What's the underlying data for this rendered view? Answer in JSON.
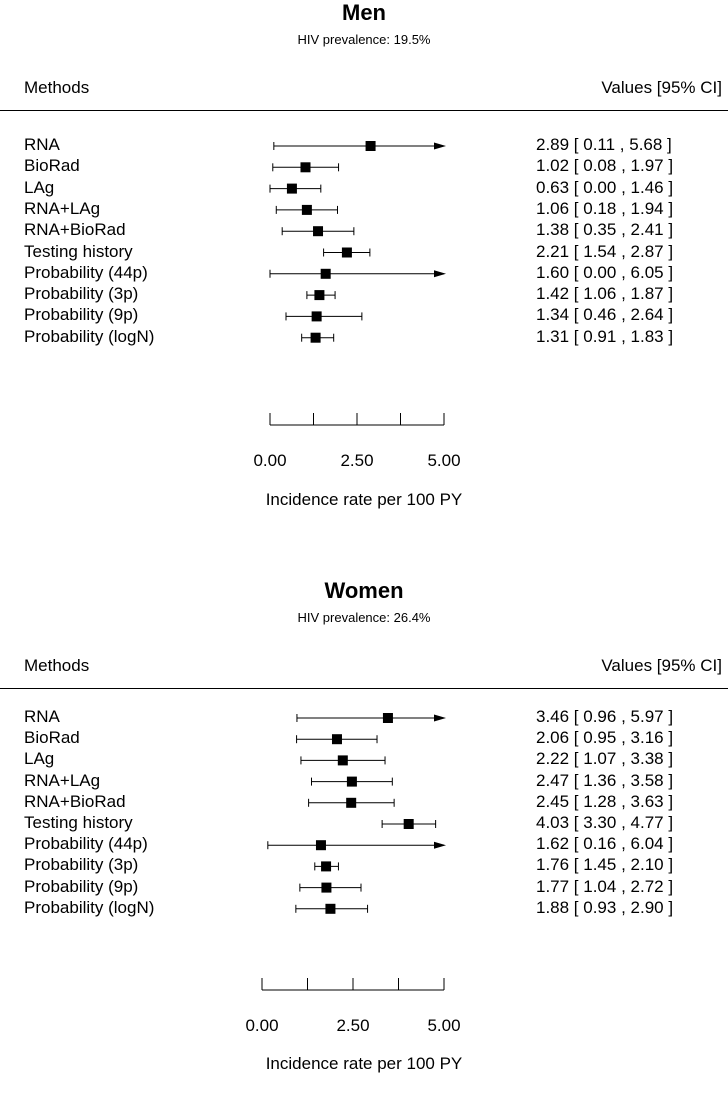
{
  "panels": [
    {
      "title": "Men",
      "subtitle": "HIV prevalence: 19.5%",
      "header_methods": "Methods",
      "header_values": "Values [95% CI]",
      "axis_title": "Incidence rate per 100 PY",
      "tick_labels": [
        "0.00",
        "2.50",
        "5.00"
      ]
    },
    {
      "title": "Women",
      "subtitle": "HIV prevalence: 26.4%",
      "header_methods": "Methods",
      "header_values": "Values [95% CI]",
      "axis_title": "Incidence rate per 100 PY",
      "tick_labels": [
        "0.00",
        "2.50",
        "5.00"
      ]
    }
  ],
  "chart_data": [
    {
      "type": "forest",
      "title": "Men",
      "subtitle": "HIV prevalence: 19.5%",
      "xlabel": "Incidence rate per 100 PY",
      "xlim": [
        0,
        5
      ],
      "ticks": [
        0,
        1.25,
        2.5,
        3.75,
        5
      ],
      "labeled_ticks": [
        0,
        2.5,
        5
      ],
      "rows": [
        {
          "method": "RNA",
          "estimate": 2.89,
          "lower": 0.11,
          "upper": 5.68,
          "text": "2.89 [ 0.11 , 5.68 ]",
          "arrow_right": true
        },
        {
          "method": "BioRad",
          "estimate": 1.02,
          "lower": 0.08,
          "upper": 1.97,
          "text": "1.02 [ 0.08 , 1.97 ]"
        },
        {
          "method": "LAg",
          "estimate": 0.63,
          "lower": 0.0,
          "upper": 1.46,
          "text": "0.63 [ 0.00 , 1.46 ]"
        },
        {
          "method": "RNA+LAg",
          "estimate": 1.06,
          "lower": 0.18,
          "upper": 1.94,
          "text": "1.06 [ 0.18 , 1.94 ]"
        },
        {
          "method": "RNA+BioRad",
          "estimate": 1.38,
          "lower": 0.35,
          "upper": 2.41,
          "text": "1.38 [ 0.35 , 2.41 ]"
        },
        {
          "method": "Testing history",
          "estimate": 2.21,
          "lower": 1.54,
          "upper": 2.87,
          "text": "2.21 [ 1.54 , 2.87 ]"
        },
        {
          "method": "Probability (44p)",
          "estimate": 1.6,
          "lower": 0.0,
          "upper": 6.05,
          "text": "1.60 [ 0.00 , 6.05 ]",
          "arrow_right": true
        },
        {
          "method": "Probability (3p)",
          "estimate": 1.42,
          "lower": 1.06,
          "upper": 1.87,
          "text": "1.42 [ 1.06 , 1.87 ]"
        },
        {
          "method": "Probability (9p)",
          "estimate": 1.34,
          "lower": 0.46,
          "upper": 2.64,
          "text": "1.34 [ 0.46 , 2.64 ]"
        },
        {
          "method": "Probability (logN)",
          "estimate": 1.31,
          "lower": 0.91,
          "upper": 1.83,
          "text": "1.31 [ 0.91 , 1.83 ]"
        }
      ]
    },
    {
      "type": "forest",
      "title": "Women",
      "subtitle": "HIV prevalence: 26.4%",
      "xlabel": "Incidence rate per 100 PY",
      "xlim": [
        0,
        5
      ],
      "ticks": [
        0,
        1.25,
        2.5,
        3.75,
        5
      ],
      "labeled_ticks": [
        0,
        2.5,
        5
      ],
      "rows": [
        {
          "method": "RNA",
          "estimate": 3.46,
          "lower": 0.96,
          "upper": 5.97,
          "text": "3.46 [ 0.96 , 5.97 ]",
          "arrow_right": true
        },
        {
          "method": "BioRad",
          "estimate": 2.06,
          "lower": 0.95,
          "upper": 3.16,
          "text": "2.06 [ 0.95 , 3.16 ]"
        },
        {
          "method": "LAg",
          "estimate": 2.22,
          "lower": 1.07,
          "upper": 3.38,
          "text": "2.22 [ 1.07 , 3.38 ]"
        },
        {
          "method": "RNA+LAg",
          "estimate": 2.47,
          "lower": 1.36,
          "upper": 3.58,
          "text": "2.47 [ 1.36 , 3.58 ]"
        },
        {
          "method": "RNA+BioRad",
          "estimate": 2.45,
          "lower": 1.28,
          "upper": 3.63,
          "text": "2.45 [ 1.28 , 3.63 ]"
        },
        {
          "method": "Testing history",
          "estimate": 4.03,
          "lower": 3.3,
          "upper": 4.77,
          "text": "4.03 [ 3.30 , 4.77 ]"
        },
        {
          "method": "Probability (44p)",
          "estimate": 1.62,
          "lower": 0.16,
          "upper": 6.04,
          "text": "1.62 [ 0.16 , 6.04 ]",
          "arrow_right": true
        },
        {
          "method": "Probability (3p)",
          "estimate": 1.76,
          "lower": 1.45,
          "upper": 2.1,
          "text": "1.76 [ 1.45 , 2.10 ]"
        },
        {
          "method": "Probability (9p)",
          "estimate": 1.77,
          "lower": 1.04,
          "upper": 2.72,
          "text": "1.77 [ 1.04 , 2.72 ]"
        },
        {
          "method": "Probability (logN)",
          "estimate": 1.88,
          "lower": 0.93,
          "upper": 2.9,
          "text": "1.88 [ 0.93 , 2.90 ]"
        }
      ]
    }
  ]
}
